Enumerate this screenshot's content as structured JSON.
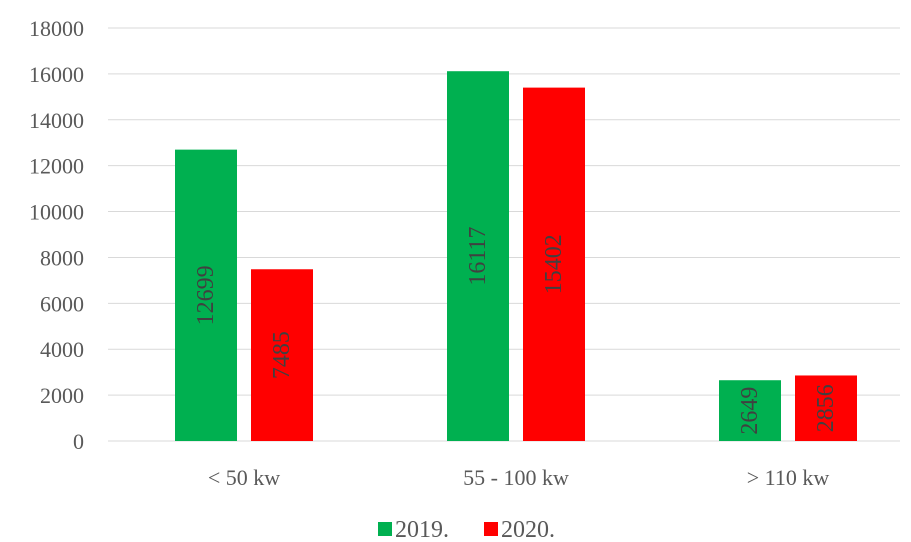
{
  "chart_data": {
    "type": "bar",
    "categories": [
      "< 50 kw",
      "55 - 100 kw",
      "> 110 kw"
    ],
    "series": [
      {
        "name": "2019.",
        "values": [
          12699,
          16117,
          2649
        ],
        "color": "#00b050"
      },
      {
        "name": "2020.",
        "values": [
          7485,
          15402,
          2856
        ],
        "color": "#ff0000"
      }
    ],
    "yticks": [
      "0",
      "2000",
      "4000",
      "6000",
      "8000",
      "10000",
      "12000",
      "14000",
      "16000",
      "18000"
    ],
    "ylim": [
      0,
      18000
    ],
    "grid": true,
    "legend_position": "bottom",
    "data_labels": "rotated-inside-bars"
  }
}
